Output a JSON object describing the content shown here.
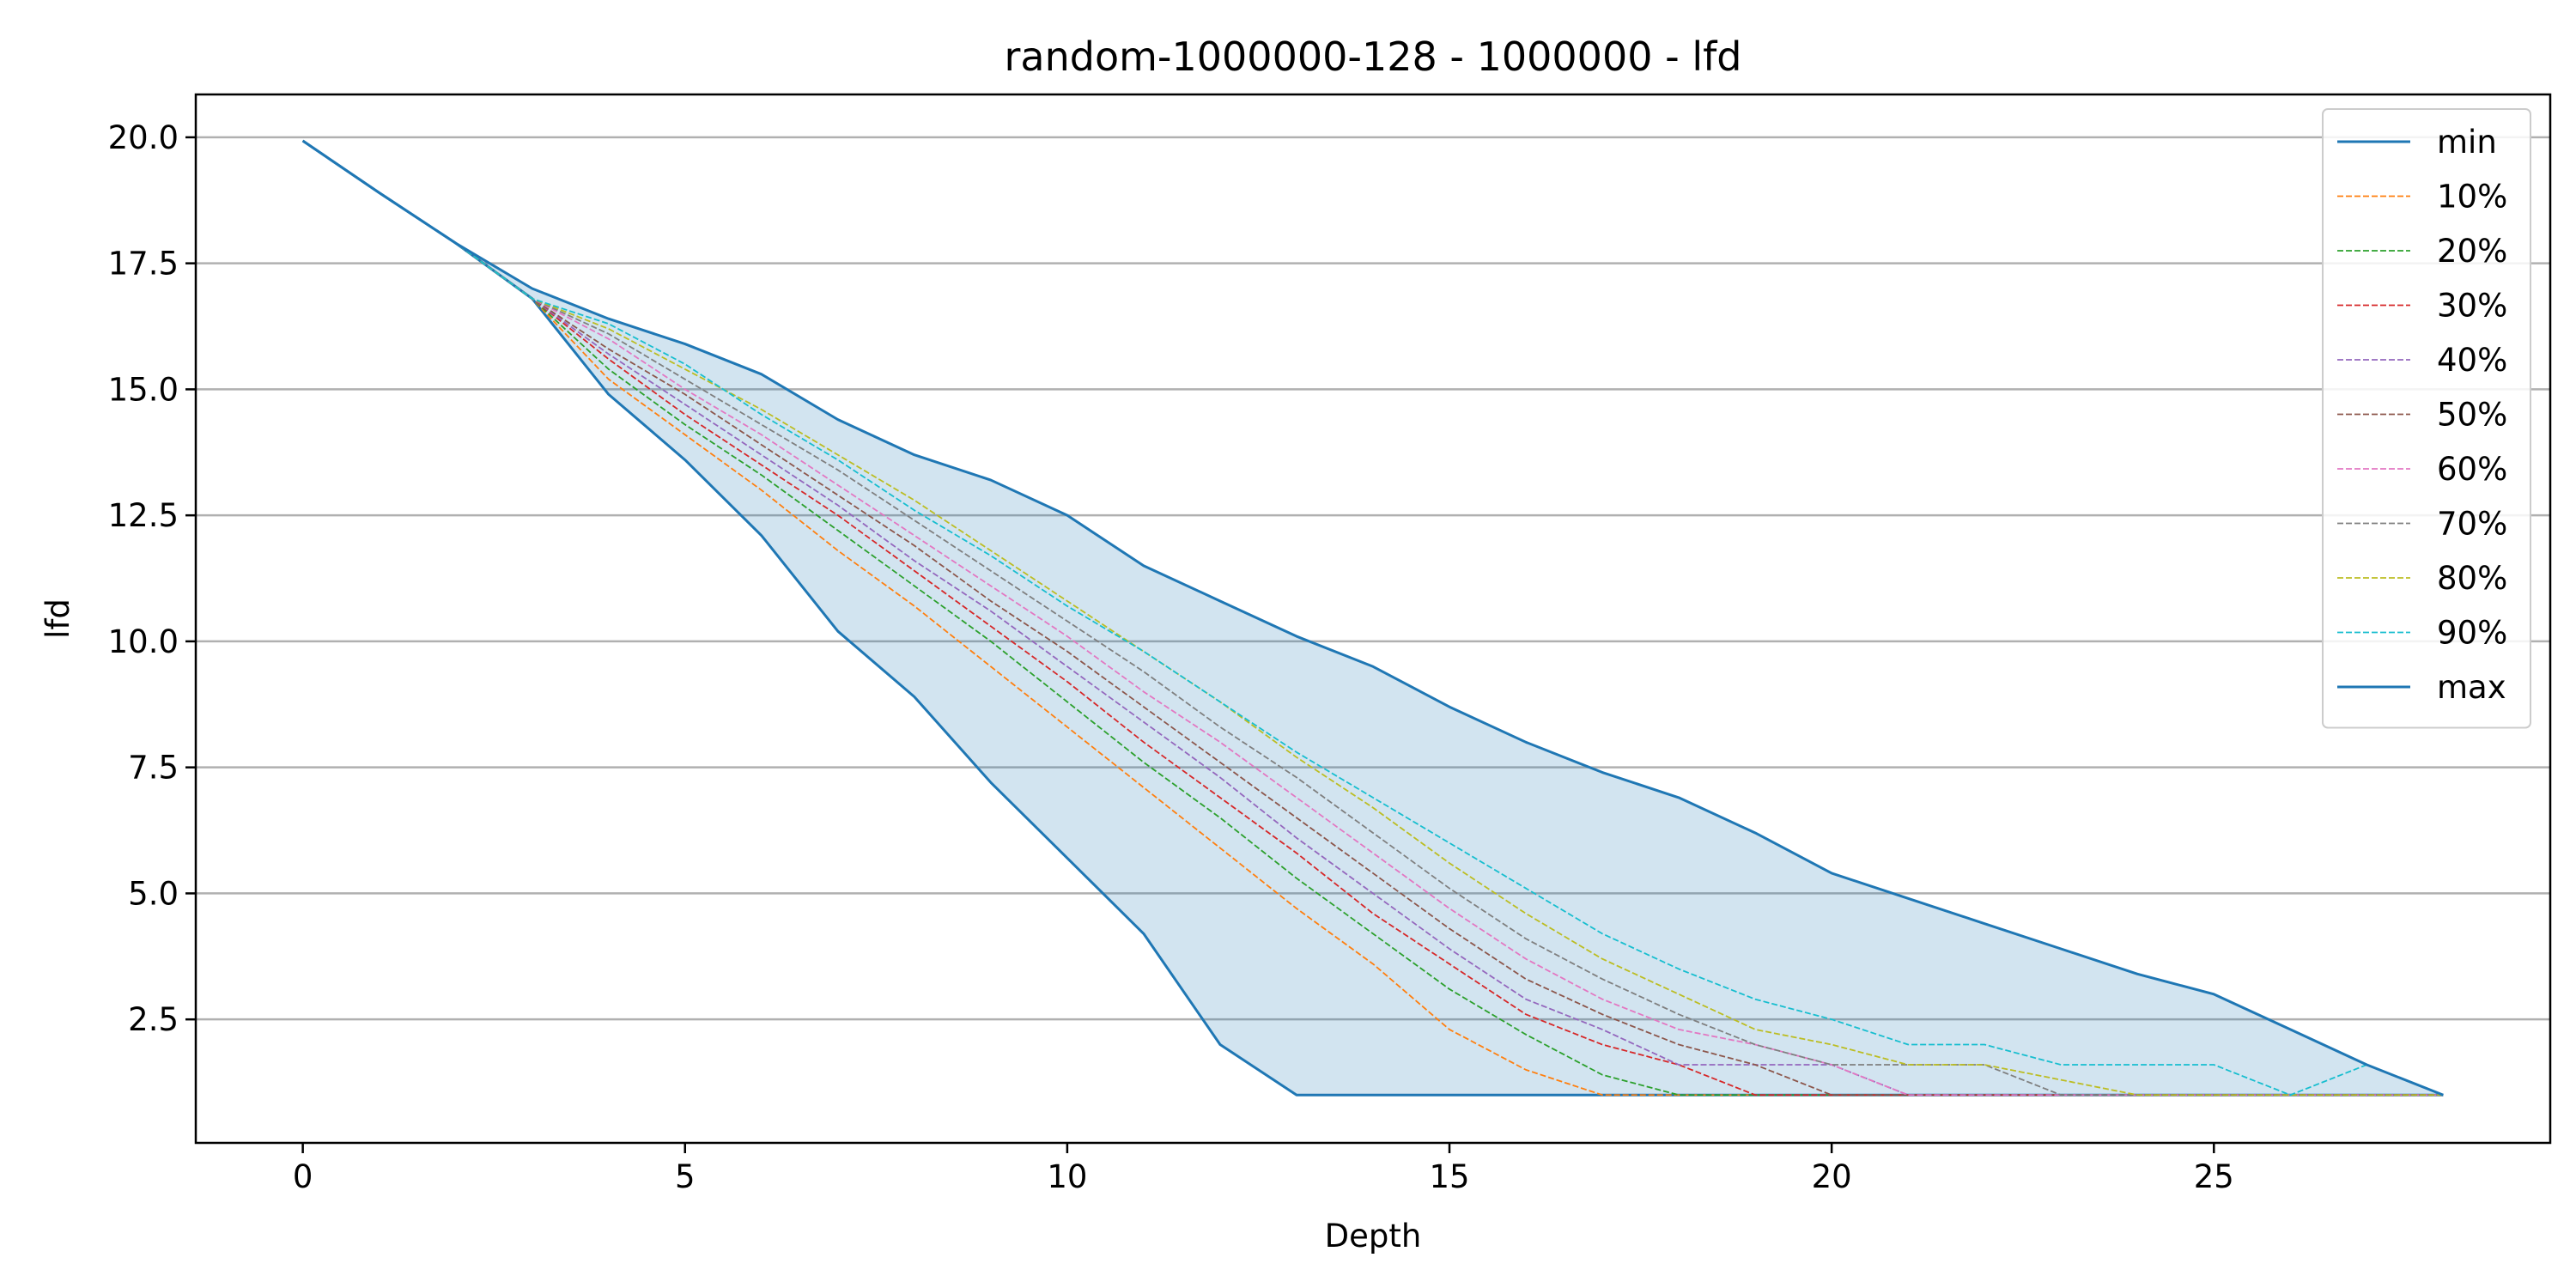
{
  "chart_data": {
    "type": "line",
    "title": "random-1000000-128 - 1000000 - lfd",
    "xlabel": "Depth",
    "ylabel": "lfd",
    "xlim": [
      -1.4,
      29.4
    ],
    "ylim": [
      0.05,
      20.85
    ],
    "xticks": [
      0,
      5,
      10,
      15,
      20,
      25
    ],
    "xtick_labels": [
      "0",
      "5",
      "10",
      "15",
      "20",
      "25"
    ],
    "yticks": [
      2.5,
      5.0,
      7.5,
      10.0,
      12.5,
      15.0,
      17.5,
      20.0
    ],
    "ytick_labels": [
      "2.5",
      "5.0",
      "7.5",
      "10.0",
      "12.5",
      "15.0",
      "17.5",
      "20.0"
    ],
    "grid": "horizontal",
    "legend_position": "top-right",
    "fill_between": [
      "min",
      "max"
    ],
    "x": [
      0,
      1,
      2,
      3,
      4,
      5,
      6,
      7,
      8,
      9,
      10,
      11,
      12,
      13,
      14,
      15,
      16,
      17,
      18,
      19,
      20,
      21,
      22,
      23,
      24,
      25,
      26,
      27,
      28
    ],
    "series": [
      {
        "name": "min",
        "color": "#1f77b4",
        "style": "solid",
        "values": [
          19.93,
          18.9,
          17.9,
          16.8,
          14.9,
          13.6,
          12.1,
          10.2,
          8.9,
          7.2,
          5.7,
          4.2,
          2.0,
          1.0,
          1.0,
          1.0,
          1.0,
          1.0,
          1.0,
          1.0,
          1.0,
          1.0,
          1.0,
          1.0,
          1.0,
          1.0,
          1.0,
          1.0,
          1.0
        ]
      },
      {
        "name": "10%",
        "color": "#ff7f0e",
        "style": "dashed",
        "values": [
          19.93,
          18.9,
          17.9,
          16.8,
          15.2,
          14.1,
          13.0,
          11.8,
          10.7,
          9.5,
          8.3,
          7.1,
          5.9,
          4.7,
          3.6,
          2.3,
          1.5,
          1.0,
          1.0,
          1.0,
          1.0,
          1.0,
          1.0,
          1.0,
          1.0,
          1.0,
          1.0,
          1.0,
          1.0
        ]
      },
      {
        "name": "20%",
        "color": "#2ca02c",
        "style": "dashed",
        "values": [
          19.93,
          18.9,
          17.9,
          16.8,
          15.4,
          14.3,
          13.3,
          12.2,
          11.1,
          10.0,
          8.8,
          7.6,
          6.5,
          5.3,
          4.2,
          3.1,
          2.2,
          1.4,
          1.0,
          1.0,
          1.0,
          1.0,
          1.0,
          1.0,
          1.0,
          1.0,
          1.0,
          1.0,
          1.0
        ]
      },
      {
        "name": "30%",
        "color": "#d62728",
        "style": "dashed",
        "values": [
          19.93,
          18.9,
          17.9,
          16.8,
          15.6,
          14.5,
          13.5,
          12.5,
          11.4,
          10.3,
          9.2,
          8.0,
          6.9,
          5.8,
          4.6,
          3.6,
          2.6,
          2.0,
          1.6,
          1.0,
          1.0,
          1.0,
          1.0,
          1.0,
          1.0,
          1.0,
          1.0,
          1.0,
          1.0
        ]
      },
      {
        "name": "40%",
        "color": "#9467bd",
        "style": "dashed",
        "values": [
          19.93,
          18.9,
          17.9,
          16.8,
          15.7,
          14.7,
          13.7,
          12.7,
          11.6,
          10.6,
          9.5,
          8.4,
          7.3,
          6.1,
          5.0,
          3.9,
          2.9,
          2.3,
          1.6,
          1.6,
          1.6,
          1.0,
          1.0,
          1.0,
          1.0,
          1.0,
          1.0,
          1.0,
          1.0
        ]
      },
      {
        "name": "50%",
        "color": "#8c564b",
        "style": "dashed",
        "values": [
          19.93,
          18.9,
          17.9,
          16.8,
          15.8,
          14.9,
          13.9,
          12.9,
          11.9,
          10.8,
          9.8,
          8.7,
          7.6,
          6.5,
          5.4,
          4.3,
          3.3,
          2.6,
          2.0,
          1.6,
          1.0,
          1.0,
          1.0,
          1.0,
          1.0,
          1.0,
          1.0,
          1.0,
          1.0
        ]
      },
      {
        "name": "60%",
        "color": "#e377c2",
        "style": "dashed",
        "values": [
          19.93,
          18.9,
          17.9,
          16.8,
          16.0,
          15.0,
          14.1,
          13.1,
          12.1,
          11.1,
          10.1,
          9.0,
          8.0,
          6.9,
          5.8,
          4.7,
          3.7,
          2.9,
          2.3,
          2.0,
          1.6,
          1.0,
          1.0,
          1.0,
          1.0,
          1.0,
          1.0,
          1.0,
          1.0
        ]
      },
      {
        "name": "70%",
        "color": "#7f7f7f",
        "style": "dashed",
        "values": [
          19.93,
          18.9,
          17.9,
          16.8,
          16.1,
          15.2,
          14.3,
          13.4,
          12.4,
          11.4,
          10.4,
          9.4,
          8.3,
          7.3,
          6.2,
          5.1,
          4.1,
          3.3,
          2.6,
          2.0,
          1.6,
          1.6,
          1.6,
          1.0,
          1.0,
          1.0,
          1.0,
          1.0,
          1.0
        ]
      },
      {
        "name": "80%",
        "color": "#bcbd22",
        "style": "dashed",
        "values": [
          19.93,
          18.9,
          17.9,
          16.8,
          16.2,
          15.4,
          14.6,
          13.7,
          12.8,
          11.8,
          10.8,
          9.8,
          8.8,
          7.7,
          6.7,
          5.6,
          4.6,
          3.7,
          3.0,
          2.3,
          2.0,
          1.6,
          1.6,
          1.3,
          1.0,
          1.0,
          1.0,
          1.0,
          1.0
        ]
      },
      {
        "name": "90%",
        "color": "#17becf",
        "style": "dashed",
        "values": [
          19.93,
          18.9,
          17.9,
          16.8,
          16.3,
          15.5,
          14.5,
          13.6,
          12.6,
          11.7,
          10.7,
          9.8,
          8.8,
          7.8,
          6.9,
          6.0,
          5.1,
          4.2,
          3.5,
          2.9,
          2.5,
          2.0,
          2.0,
          1.6,
          1.6,
          1.6,
          1.0,
          1.6,
          1.0
        ]
      },
      {
        "name": "max",
        "color": "#1f77b4",
        "style": "solid",
        "values": [
          19.93,
          18.9,
          17.9,
          17.0,
          16.4,
          15.9,
          15.3,
          14.4,
          13.7,
          13.2,
          12.5,
          11.5,
          10.8,
          10.1,
          9.5,
          8.7,
          8.0,
          7.4,
          6.9,
          6.2,
          5.4,
          4.9,
          4.4,
          3.9,
          3.4,
          3.0,
          2.3,
          1.6,
          1.0
        ]
      }
    ],
    "colors": {
      "fill": "#1f77b4",
      "grid": "#b0b0b0",
      "frame": "#000000"
    }
  }
}
